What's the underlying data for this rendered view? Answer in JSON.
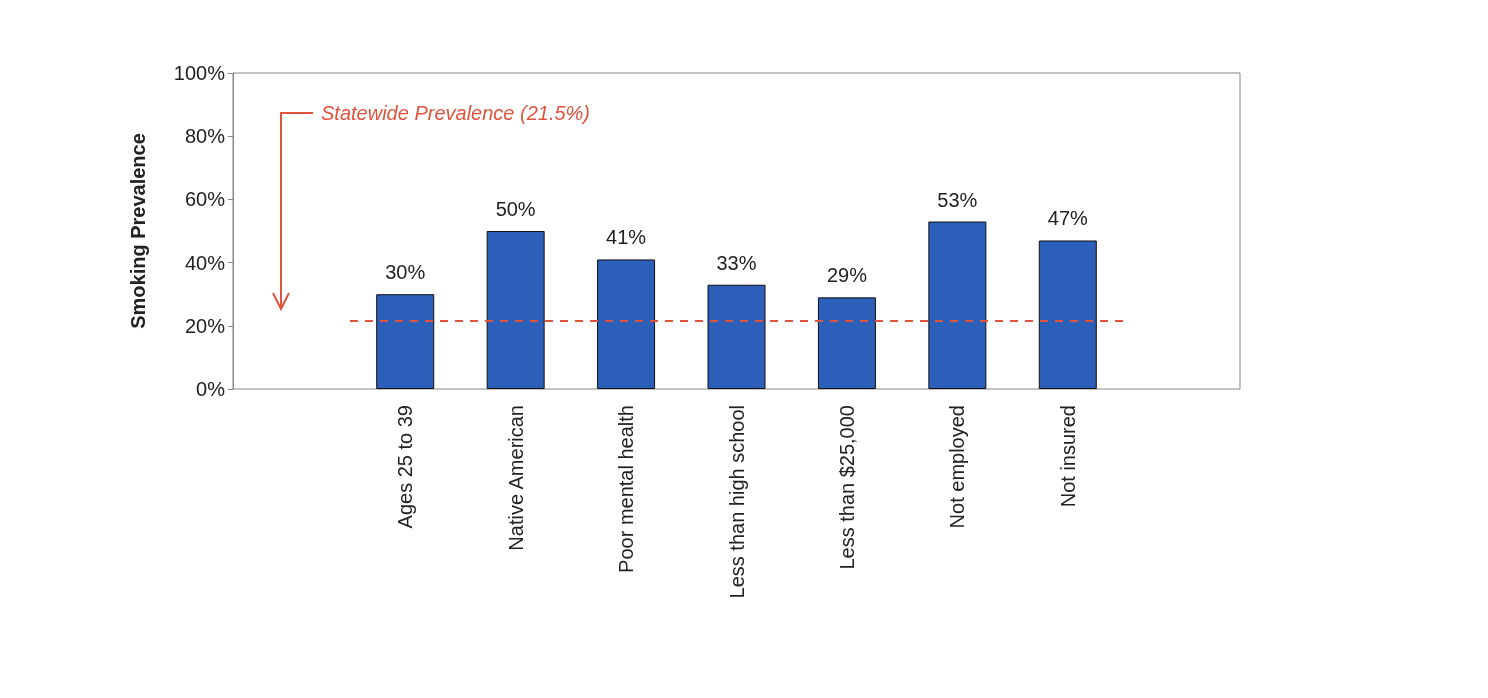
{
  "chart_data": {
    "type": "bar",
    "ylabel": "Smoking Prevalence",
    "categories": [
      "Ages 25 to 39",
      "Native American",
      "Poor mental health",
      "Less than high school",
      "Less than $25,000",
      "Not employed",
      "Not insured"
    ],
    "values": [
      30,
      50,
      41,
      33,
      29,
      53,
      47
    ],
    "value_labels": [
      "30%",
      "50%",
      "41%",
      "33%",
      "29%",
      "53%",
      "47%"
    ],
    "color": "#2c5fb9",
    "ylim": [
      0,
      100
    ],
    "yticks": [
      {
        "value": 0,
        "label": "0%"
      },
      {
        "value": 20,
        "label": "20%"
      },
      {
        "value": 40,
        "label": "40%"
      },
      {
        "value": 60,
        "label": "60%"
      },
      {
        "value": 80,
        "label": "80%"
      },
      {
        "value": 100,
        "label": "100%"
      }
    ],
    "ref_lines": [
      {
        "axis": "y",
        "value": 21.5,
        "label": "Statewide Prevalence (21.5%)",
        "color": "#e0533d",
        "line_style": "dashed"
      }
    ],
    "grid": false
  }
}
